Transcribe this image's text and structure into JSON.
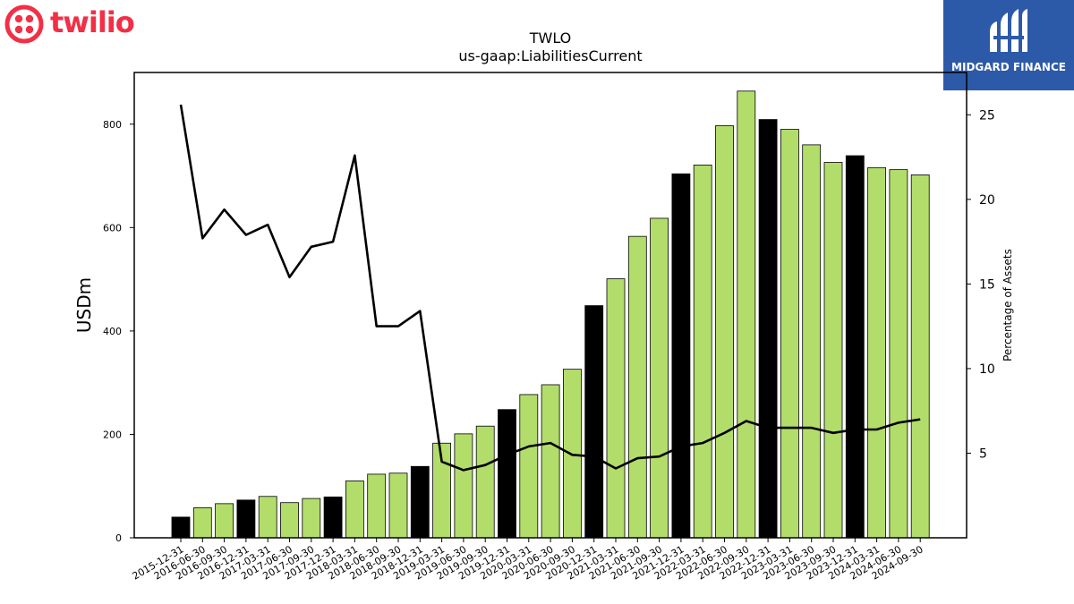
{
  "logos": {
    "left_brand": "twilio",
    "right_brand": "MIDGARD FINANCE",
    "left_color": "#f22f46",
    "right_bg": "#2d5aa8"
  },
  "chart_data": {
    "type": "bar",
    "title": "TWLO",
    "subtitle": "us-gaap:LiabilitiesCurrent",
    "ylabel": "USDm",
    "y2label": "Percentage of Assets",
    "ylim": [
      0,
      900
    ],
    "y2lim": [
      0,
      27.5
    ],
    "yticks": [
      0,
      200,
      400,
      600,
      800
    ],
    "y2ticks": [
      5,
      10,
      15,
      20,
      25
    ],
    "categories": [
      "2015-12-31",
      "2016-06-30",
      "2016-09-30",
      "2016-12-31",
      "2017-03-31",
      "2017-06-30",
      "2017-09-30",
      "2017-12-31",
      "2018-03-31",
      "2018-06-30",
      "2018-09-30",
      "2018-12-31",
      "2019-03-31",
      "2019-06-30",
      "2019-09-30",
      "2019-12-31",
      "2020-03-31",
      "2020-06-30",
      "2020-09-30",
      "2020-12-31",
      "2021-03-31",
      "2021-06-30",
      "2021-09-30",
      "2021-12-31",
      "2022-03-31",
      "2022-06-30",
      "2022-09-30",
      "2022-12-31",
      "2023-03-31",
      "2023-06-30",
      "2023-09-30",
      "2023-12-31",
      "2024-03-31",
      "2024-06-30",
      "2024-09-30"
    ],
    "series": [
      {
        "type": "bar",
        "values": [
          40,
          58,
          66,
          73,
          80,
          68,
          76,
          79,
          110,
          123,
          125,
          138,
          183,
          201,
          216,
          248,
          277,
          296,
          326,
          449,
          501,
          583,
          618,
          704,
          721,
          797,
          864,
          809,
          790,
          760,
          726,
          739,
          716,
          712,
          702
        ],
        "colors": {
          "annual": "#000000",
          "quarterly": "#b3dd6b"
        },
        "annual": [
          true,
          false,
          false,
          true,
          false,
          false,
          false,
          true,
          false,
          false,
          false,
          true,
          false,
          false,
          false,
          true,
          false,
          false,
          false,
          true,
          false,
          false,
          false,
          true,
          false,
          false,
          false,
          true,
          false,
          false,
          false,
          true,
          false,
          false,
          false
        ]
      },
      {
        "type": "line",
        "axis": "right",
        "color": "#000000",
        "values": [
          25.6,
          17.7,
          19.4,
          17.9,
          18.5,
          15.4,
          17.2,
          17.5,
          22.6,
          12.5,
          12.5,
          13.4,
          4.5,
          4.0,
          4.3,
          4.9,
          5.4,
          5.6,
          4.9,
          4.8,
          4.1,
          4.7,
          4.8,
          5.4,
          5.6,
          6.2,
          6.9,
          6.5,
          6.5,
          6.5,
          6.2,
          6.4,
          6.4,
          6.8,
          7.0
        ]
      }
    ]
  }
}
